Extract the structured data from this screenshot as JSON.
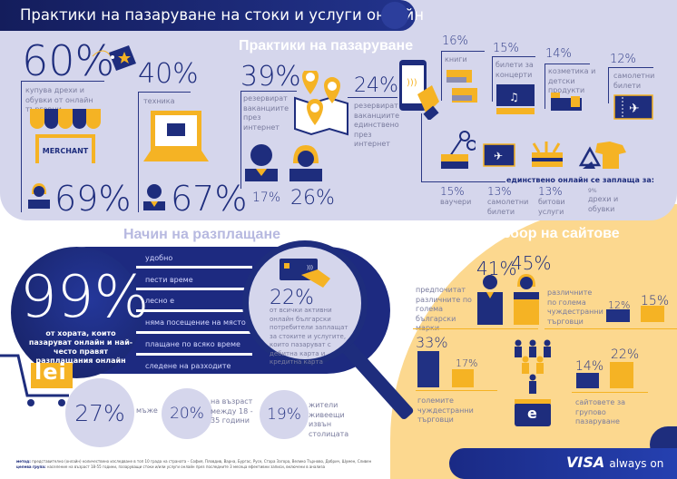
{
  "title": "Практики на пазаруване на стоки и услуги онлайн",
  "left": {
    "clothes_pct": "60%",
    "clothes_label": "купува дрехи и обувки от онлайн търговци",
    "merchant_sign": "MERCHANT",
    "women_pct": "69%",
    "tech_pct": "40%",
    "tech_label": "техника",
    "men_pct": "67%"
  },
  "practices": {
    "heading": "Практики на пазаруване",
    "vacation_pct": "39%",
    "vacation_label": "резервират ваканциите през интернет",
    "vacation_only_pct": "24%",
    "vacation_only_label": "резервират ваканциите единствено през интернет",
    "men_pct": "17%",
    "women_pct": "26%",
    "categories": [
      {
        "pct": "16%",
        "label": "книги"
      },
      {
        "pct": "15%",
        "label": "билети за концерти"
      },
      {
        "pct": "14%",
        "label": "козметика и детски продукти"
      },
      {
        "pct": "12%",
        "label": "самолетни билети"
      }
    ],
    "online_only_heading": "единствено онлайн се заплаща за:",
    "online_only": [
      {
        "pct": "15%",
        "label": "ваучери"
      },
      {
        "pct": "13%",
        "label": "самолетни билети"
      },
      {
        "pct": "13%",
        "label": "битови услуги"
      },
      {
        "pct": "9%",
        "label": "дрехи и обувки"
      }
    ]
  },
  "payment": {
    "heading": "Начин на разплащане",
    "main_pct": "99%",
    "main_label": "от хората, които пазаруват онлайн и най-често правят разплащания онлайн",
    "reasons": [
      "удобно",
      "пести време",
      "лесно е",
      "няма посещение на място",
      "плащане по всяко време",
      "следене на разходите"
    ],
    "card_pct": "22%",
    "card_label": "от всички активни онлайн български потребители заплащат за стоките и услугите, които пазаруват с дебитна карта и кредитна карта",
    "currency": "lei",
    "stats": [
      {
        "pct": "27%",
        "label": "мъже"
      },
      {
        "pct": "20%",
        "label": "на възраст между 18 - 35 години"
      },
      {
        "pct": "19%",
        "label": "жители живеещи извън столицата"
      }
    ]
  },
  "sites": {
    "heading": "Избор на сайтове",
    "men_pct": "41%",
    "women_pct": "45%",
    "bg_brands_label": "предпочитат различните по голема български марки",
    "foreign_label": "различните по голема чуждестранни търговци",
    "foreign_men": "12%",
    "foreign_women": "15%",
    "big_foreign_men": "33%",
    "big_foreign_women": "17%",
    "big_foreign_label": "големите чуждестранни търговци",
    "group_men": "14%",
    "group_women": "22%",
    "group_label": "сайтовете за групово пазаруване",
    "wallet_letter": "e"
  },
  "footer": {
    "method_label": "метод:",
    "method": "представително (онлайн) количествено изследване в топ 10 града на страната – София, Пловдив, Варна, Бургас, Русе, Стара Загора, Велико Търново, Добрич, Шумен, Сливен",
    "target_label": "целева група:",
    "target": "население на възраст 18-55 години, пазаруващи стоки и/или услуги онлайн през последните 3 месеца ефективни записи, включени в анализа",
    "brand": "VISA",
    "tagline": "always on"
  },
  "colors": {
    "navy": "#1e2d7d",
    "yellow": "#f5b324",
    "lavender": "#d5d6ec",
    "sand": "#fcd88f"
  }
}
